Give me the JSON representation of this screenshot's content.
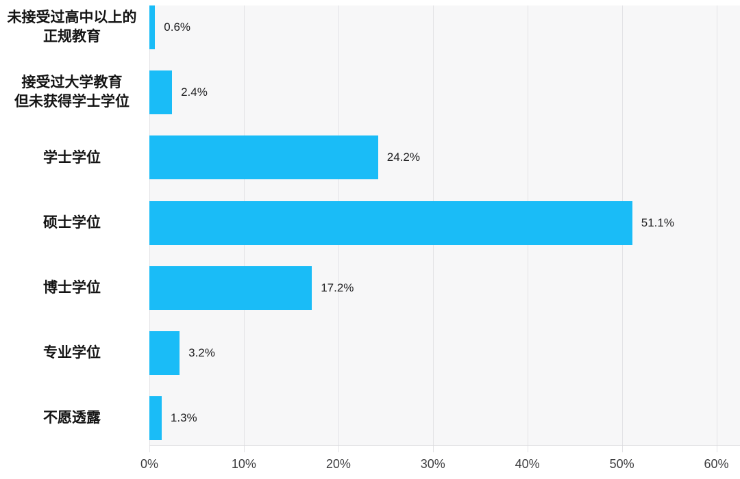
{
  "chart_data": {
    "type": "bar",
    "orientation": "horizontal",
    "title": "",
    "xlabel": "",
    "ylabel": "",
    "categories": [
      "未接受过高中以上的\n正规教育",
      "接受过大学教育\n但未获得学士学位",
      "学士学位",
      "硕士学位",
      "博士学位",
      "专业学位",
      "不愿透露"
    ],
    "values": [
      0.6,
      2.4,
      24.2,
      51.1,
      17.2,
      3.2,
      1.3
    ],
    "value_labels": [
      "0.6%",
      "2.4%",
      "24.2%",
      "51.1%",
      "17.2%",
      "3.2%",
      "1.3%"
    ],
    "x_ticks": [
      {
        "value": 0,
        "label": "0%"
      },
      {
        "value": 10,
        "label": "10%"
      },
      {
        "value": 20,
        "label": "20%"
      },
      {
        "value": 30,
        "label": "30%"
      },
      {
        "value": 40,
        "label": "40%"
      },
      {
        "value": 50,
        "label": "50%"
      },
      {
        "value": 60,
        "label": "60%"
      }
    ],
    "xlim": [
      0,
      62.5
    ],
    "grid": true,
    "legend": null,
    "colors": {
      "bar": "#1ABCF7",
      "plot_bg": "#F7F7F8",
      "gridline": "#E3E3E6",
      "axis_line": "#D8D8DB",
      "label_text": "#141414",
      "value_text": "#202022",
      "tick_text": "#3E3E40"
    }
  }
}
